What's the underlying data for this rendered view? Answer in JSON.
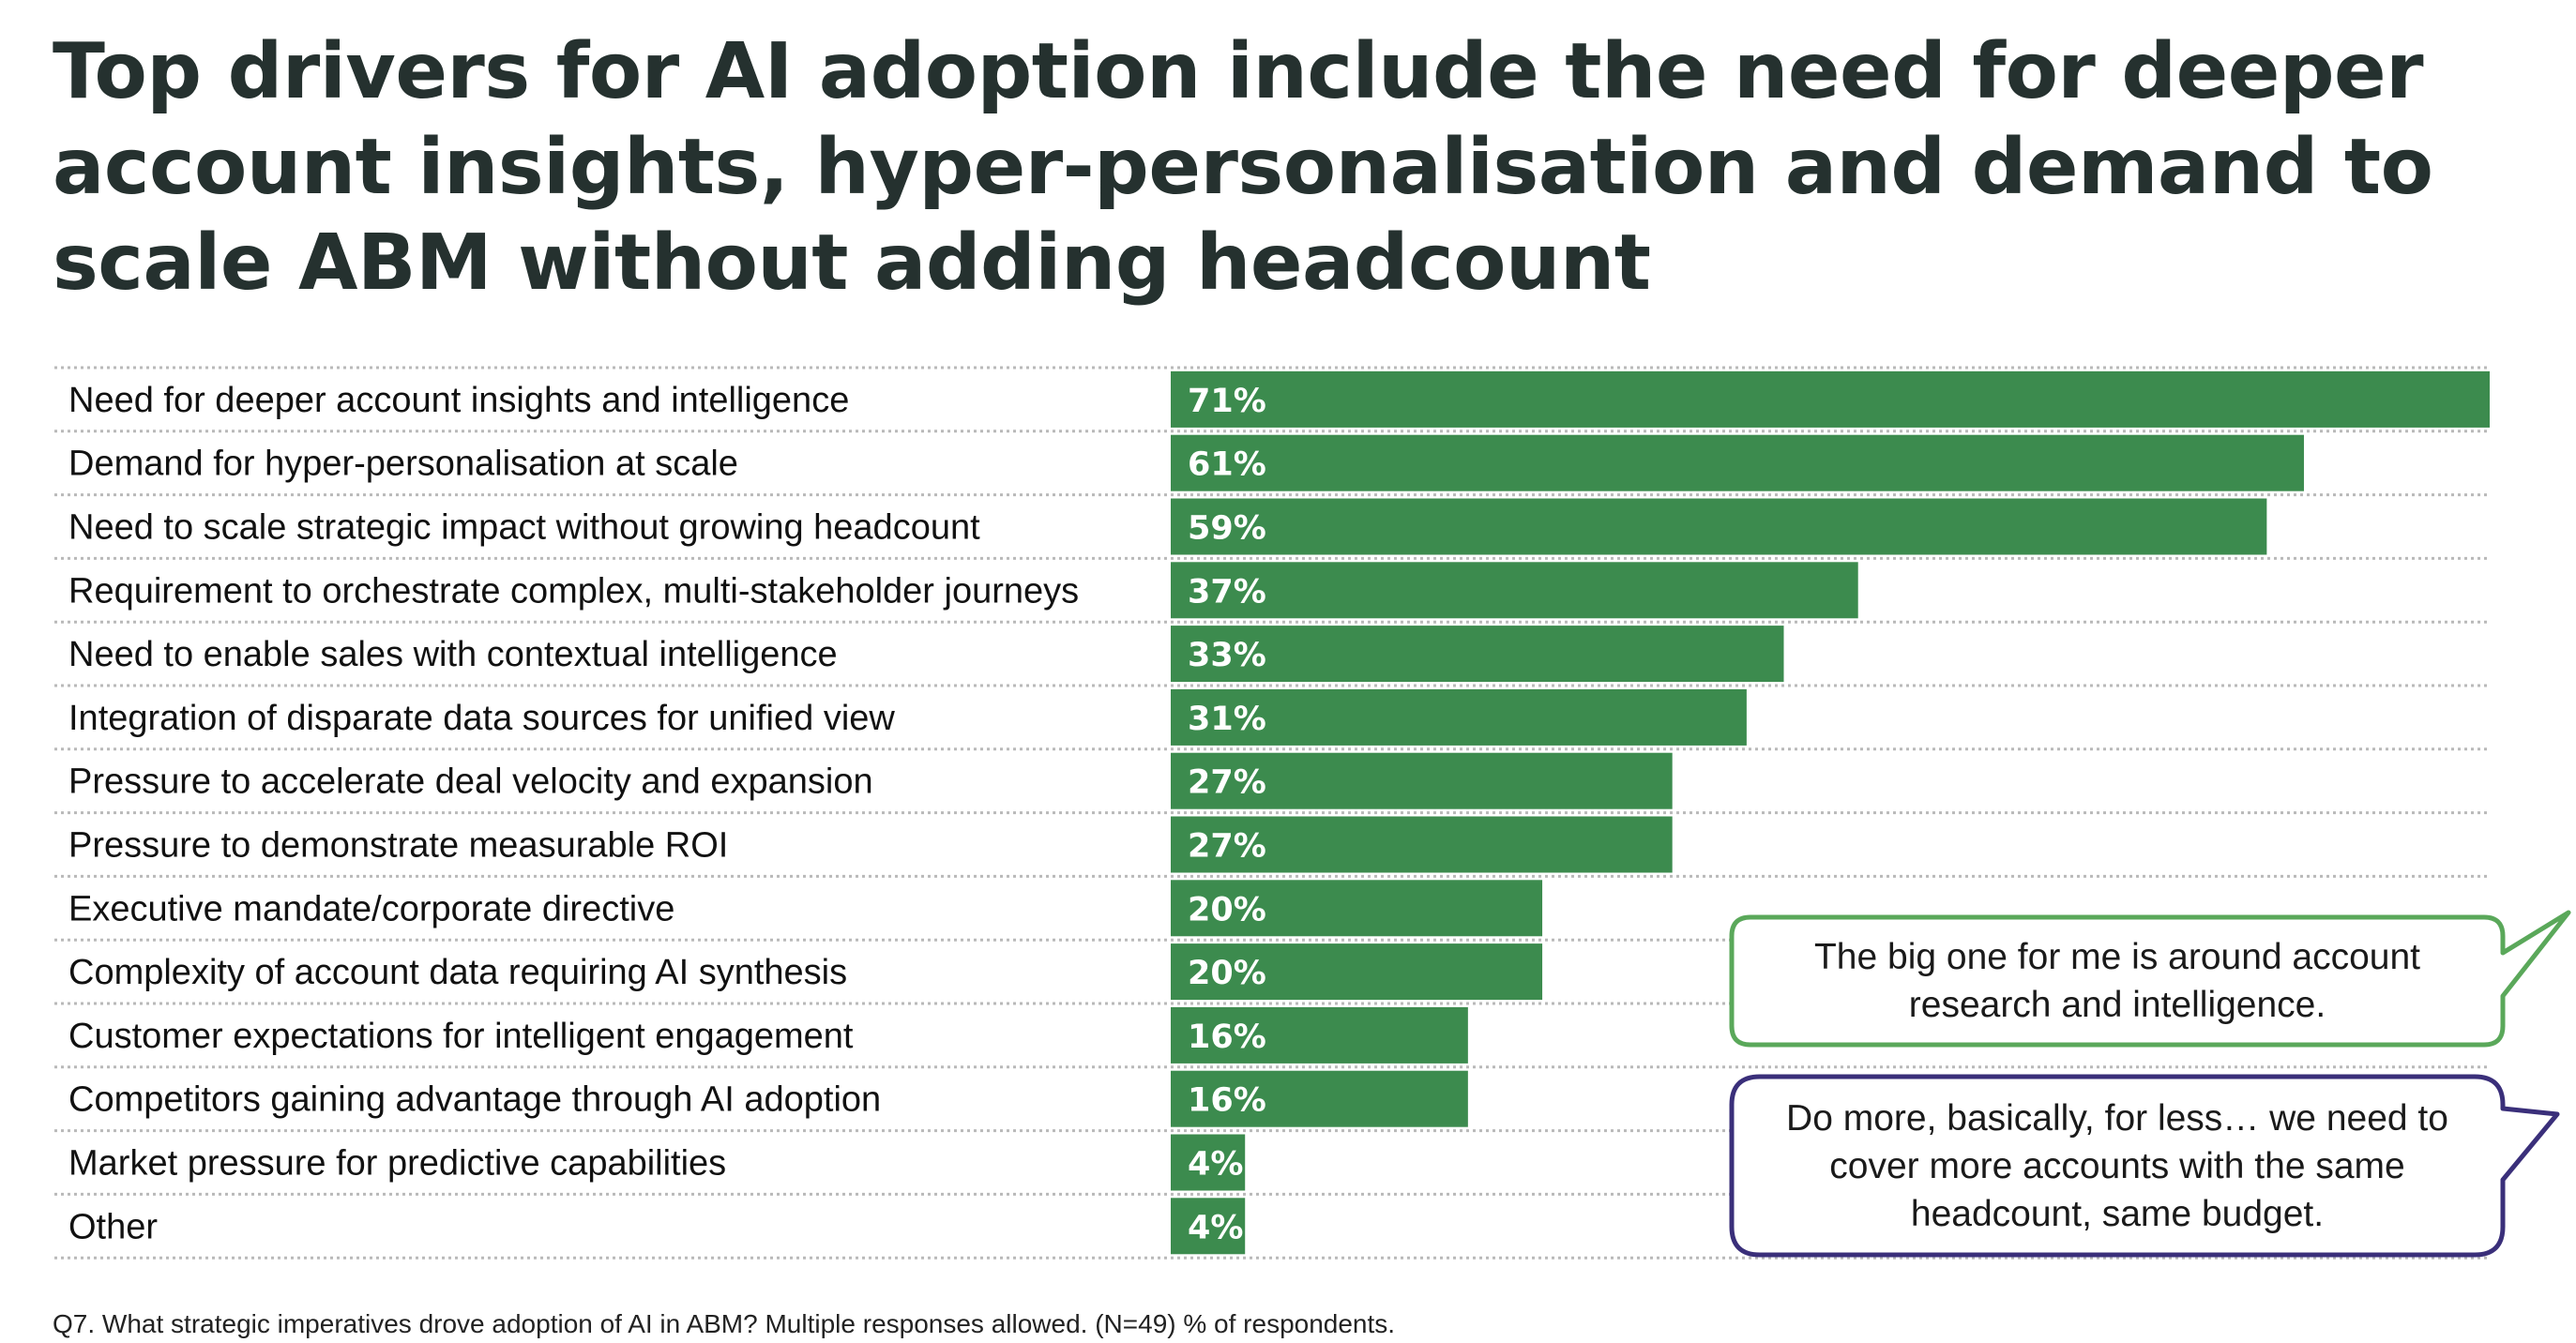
{
  "title": "Top drivers for AI adoption include the need for deeper account insights, hyper-personalisation and demand to scale ABM without adding headcount",
  "chart_data": {
    "type": "bar",
    "orientation": "horizontal",
    "title": "Top drivers for AI adoption include the need for deeper account insights, hyper-personalisation and demand to scale ABM without adding headcount",
    "xlabel": "",
    "ylabel": "",
    "unit": "%",
    "xlim": [
      0,
      71
    ],
    "grid": true,
    "categories": [
      "Need for deeper account insights and intelligence",
      "Demand for hyper-personalisation at scale",
      "Need to scale strategic impact without growing headcount",
      "Requirement to orchestrate complex, multi-stakeholder journeys",
      "Need to enable sales with contextual intelligence",
      "Integration of disparate data sources for unified view",
      "Pressure to accelerate deal velocity and expansion",
      "Pressure to demonstrate measurable ROI",
      "Executive mandate/corporate directive",
      "Complexity of account data requiring AI synthesis",
      "Customer expectations for intelligent engagement",
      "Competitors gaining advantage through AI adoption",
      "Market pressure for predictive capabilities",
      "Other"
    ],
    "values": [
      71,
      61,
      59,
      37,
      33,
      31,
      27,
      27,
      20,
      20,
      16,
      16,
      4,
      4
    ],
    "value_labels": [
      "71%",
      "61%",
      "59%",
      "37%",
      "33%",
      "31%",
      "27%",
      "27%",
      "20%",
      "20%",
      "16%",
      "16%",
      "4%",
      "4%"
    ],
    "bar_color": "#3c8b4e"
  },
  "quotes": [
    {
      "text": "The big one for me is around account research and intelligence.",
      "border_color": "#5aa85a"
    },
    {
      "text": "Do more, basically, for less… we need to cover more accounts with the same headcount, same budget.",
      "border_color": "#3a2f7a"
    }
  ],
  "footnote": "Q7. What strategic imperatives drove adoption of AI in ABM? Multiple responses allowed. (N=49) % of respondents."
}
